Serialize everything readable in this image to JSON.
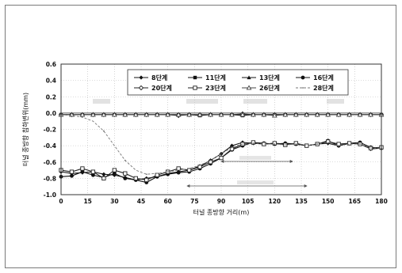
{
  "chart_data": {
    "type": "line",
    "xlabel": "터널 종방향 거리(m)",
    "ylabel": "터널 종방향 침하변위(mm)",
    "xlim": [
      0,
      180
    ],
    "ylim": [
      -1.0,
      0.6
    ],
    "xticks": [
      0,
      15,
      30,
      45,
      60,
      75,
      90,
      105,
      120,
      135,
      150,
      165,
      180
    ],
    "yticks": [
      0.6,
      0.4,
      0.2,
      0.0,
      -0.2,
      -0.4,
      -0.6,
      -0.8,
      -1.0
    ],
    "ytick_labels": [
      "0.6",
      "0.4",
      "0.2",
      "0.0",
      "-0.2",
      "-0.4",
      "-0.6",
      "-0.8",
      "-1.0"
    ],
    "grid": true,
    "legend_position": "top-right",
    "x": [
      0,
      6,
      12,
      18,
      24,
      30,
      36,
      42,
      48,
      54,
      60,
      66,
      72,
      78,
      84,
      90,
      96,
      102,
      108,
      114,
      120,
      126,
      132,
      138,
      144,
      150,
      156,
      162,
      168,
      174,
      180
    ],
    "series": [
      {
        "name": "8단계",
        "marker": "filled-diamond",
        "color": "#111111",
        "dash": "",
        "values": [
          -0.72,
          -0.74,
          -0.73,
          -0.72,
          -0.75,
          -0.76,
          -0.79,
          -0.82,
          -0.8,
          -0.78,
          -0.74,
          -0.72,
          -0.7,
          -0.65,
          -0.58,
          -0.5,
          -0.4,
          -0.36,
          -0.37,
          -0.38,
          -0.37,
          -0.38,
          -0.38,
          -0.4,
          -0.38,
          -0.37,
          -0.4,
          -0.37,
          -0.38,
          -0.44,
          -0.43
        ]
      },
      {
        "name": "11단계",
        "marker": "filled-square",
        "color": "#111111",
        "dash": "",
        "values": [
          -0.02,
          -0.02,
          -0.02,
          -0.02,
          -0.02,
          -0.02,
          -0.02,
          -0.02,
          -0.02,
          -0.02,
          -0.02,
          -0.02,
          -0.02,
          -0.03,
          -0.02,
          -0.02,
          -0.02,
          -0.03,
          -0.02,
          -0.02,
          -0.02,
          -0.02,
          -0.02,
          -0.02,
          -0.02,
          -0.02,
          -0.02,
          -0.02,
          -0.02,
          -0.02,
          -0.02
        ]
      },
      {
        "name": "13단계",
        "marker": "filled-triangle",
        "color": "#111111",
        "dash": "",
        "values": [
          -0.02,
          -0.02,
          -0.02,
          -0.02,
          -0.02,
          -0.02,
          -0.02,
          -0.02,
          -0.02,
          -0.02,
          -0.02,
          -0.02,
          -0.02,
          -0.02,
          -0.02,
          -0.02,
          -0.02,
          -0.02,
          -0.02,
          -0.02,
          -0.02,
          -0.02,
          -0.02,
          -0.02,
          -0.02,
          -0.02,
          -0.02,
          -0.02,
          -0.02,
          -0.02,
          -0.02
        ]
      },
      {
        "name": "16단계",
        "marker": "filled-circle",
        "color": "#111111",
        "dash": "",
        "values": [
          -0.78,
          -0.77,
          -0.72,
          -0.76,
          -0.79,
          -0.74,
          -0.8,
          -0.82,
          -0.85,
          -0.78,
          -0.75,
          -0.73,
          -0.72,
          -0.68,
          -0.62,
          -0.55,
          -0.45,
          -0.4,
          -0.36,
          -0.37,
          -0.38,
          -0.37,
          -0.38,
          -0.4,
          -0.38,
          -0.34,
          -0.4,
          -0.37,
          -0.36,
          -0.42,
          -0.43
        ]
      },
      {
        "name": "20단계",
        "marker": "open-diamond",
        "color": "#222222",
        "dash": "",
        "values": [
          -0.02,
          -0.02,
          -0.02,
          -0.02,
          -0.02,
          -0.02,
          -0.02,
          -0.02,
          -0.02,
          -0.02,
          -0.02,
          -0.03,
          -0.02,
          -0.02,
          -0.02,
          -0.02,
          -0.02,
          -0.01,
          -0.02,
          -0.02,
          -0.02,
          -0.02,
          -0.02,
          -0.02,
          -0.02,
          -0.02,
          -0.02,
          -0.02,
          -0.02,
          -0.02,
          -0.02
        ]
      },
      {
        "name": "23단계",
        "marker": "open-square",
        "color": "#222222",
        "dash": "",
        "values": [
          -0.7,
          -0.72,
          -0.68,
          -0.72,
          -0.8,
          -0.7,
          -0.74,
          -0.8,
          -0.82,
          -0.76,
          -0.72,
          -0.68,
          -0.7,
          -0.66,
          -0.6,
          -0.55,
          -0.44,
          -0.38,
          -0.36,
          -0.38,
          -0.37,
          -0.39,
          -0.37,
          -0.4,
          -0.38,
          -0.35,
          -0.38,
          -0.37,
          -0.38,
          -0.43,
          -0.42
        ]
      },
      {
        "name": "26단계",
        "marker": "open-triangle",
        "color": "#444444",
        "dash": "",
        "values": [
          -0.02,
          -0.02,
          -0.02,
          -0.02,
          -0.02,
          -0.02,
          -0.02,
          -0.02,
          -0.02,
          -0.02,
          -0.02,
          -0.02,
          -0.02,
          -0.02,
          -0.02,
          -0.02,
          -0.02,
          -0.02,
          -0.02,
          -0.02,
          -0.03,
          -0.02,
          -0.02,
          -0.02,
          -0.02,
          -0.02,
          -0.02,
          -0.02,
          -0.02,
          -0.02,
          -0.02
        ]
      },
      {
        "name": "28단계",
        "marker": "dot",
        "color": "#777777",
        "dash": "3,2",
        "values": [
          -0.02,
          -0.03,
          -0.05,
          -0.1,
          -0.22,
          -0.4,
          -0.58,
          -0.7,
          -0.75,
          -0.74,
          -0.72,
          -0.7,
          -0.68,
          -0.64,
          -0.58,
          -0.5,
          -0.42,
          -0.38,
          -0.37,
          -0.38,
          -0.38,
          -0.39,
          -0.38,
          -0.4,
          -0.38,
          -0.36,
          -0.4,
          -0.38,
          -0.38,
          -0.43,
          -0.43
        ]
      }
    ]
  }
}
